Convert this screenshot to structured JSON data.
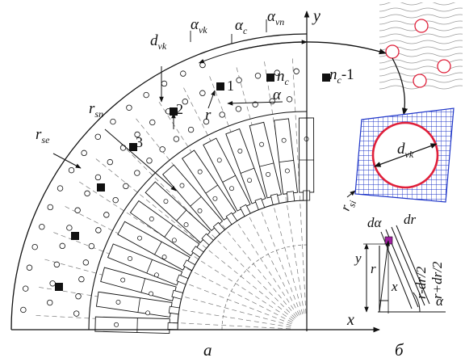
{
  "labels": {
    "d_vk_main": "d",
    "d_vk_main_sub": "vk",
    "alpha_vk": "α",
    "alpha_vk_sub": "vk",
    "alpha_c": "α",
    "alpha_c_sub": "c",
    "alpha_vn": "α",
    "alpha_vn_sub": "vn",
    "y_axis": "y",
    "x_axis": "x",
    "r_sn": "r",
    "r_sn_sub": "sn",
    "r_se": "r",
    "r_se_sub": "se",
    "r_si": "r",
    "r_si_sub": "si",
    "r": "r",
    "alpha": "α",
    "ch1": "1",
    "ch2": "2",
    "ch3": "3",
    "n_c": "n",
    "n_c_sub": "c",
    "n_c1": "n",
    "n_c1_sub": "c",
    "n_c1_tail": "-1",
    "mesh_d": "d",
    "mesh_d_sub": "vk",
    "d_alpha": "dα",
    "dr": "dr",
    "r_plus": "r+dr/2",
    "r_minus": "r-dr/2",
    "inset_y": "y",
    "inset_x": "x",
    "inset_r": "r",
    "inset_alpha": "α"
  },
  "captions": {
    "a": "a",
    "b": "б"
  },
  "colors": {
    "mesh_blue": "#1e35c8",
    "circle_red": "#e0203a",
    "element_purple": "#a020a0",
    "line": "#111111",
    "dash": "#777777"
  }
}
